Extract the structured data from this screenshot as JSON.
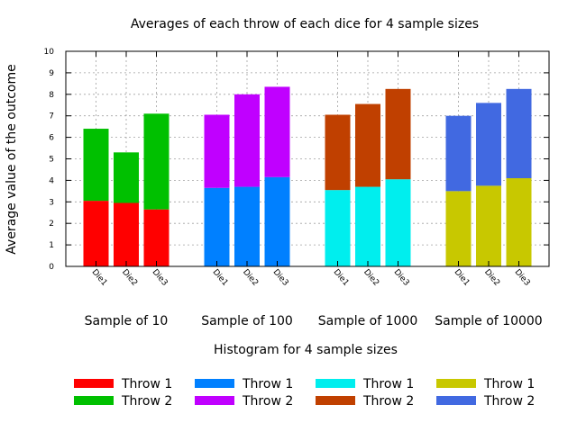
{
  "chart_data": {
    "type": "bar",
    "stacked": true,
    "title": "Averages of each throw of each dice for 4 sample sizes",
    "ylabel": "Average value of the outcome",
    "xlabel": "Histogram for 4 sample sizes",
    "ylim": [
      0,
      10
    ],
    "yticks": [
      "0",
      "1",
      "2",
      "3",
      "4",
      "5",
      "6",
      "7",
      "8",
      "9",
      "10"
    ],
    "grid": true,
    "groups": [
      {
        "label": "Sample of 10",
        "categories": [
          "Die1",
          "Die2",
          "Die3"
        ],
        "series": [
          {
            "name": "Throw 1",
            "color": "#ff0000",
            "values": [
              3.05,
              2.95,
              2.65
            ]
          },
          {
            "name": "Throw 2",
            "color": "#00c000",
            "values": [
              3.35,
              2.35,
              4.45
            ]
          }
        ]
      },
      {
        "label": "Sample of 100",
        "categories": [
          "Die1",
          "Die2",
          "Die3"
        ],
        "series": [
          {
            "name": "Throw 1",
            "color": "#0080ff",
            "values": [
              3.65,
              3.7,
              4.15
            ]
          },
          {
            "name": "Throw 2",
            "color": "#c000ff",
            "values": [
              3.4,
              4.3,
              4.2
            ]
          }
        ]
      },
      {
        "label": "Sample of 1000",
        "categories": [
          "Die1",
          "Die2",
          "Die3"
        ],
        "series": [
          {
            "name": "Throw 1",
            "color": "#00eeee",
            "values": [
              3.55,
              3.7,
              4.05
            ]
          },
          {
            "name": "Throw 2",
            "color": "#c04000",
            "values": [
              3.5,
              3.85,
              4.2
            ]
          }
        ]
      },
      {
        "label": "Sample of 10000",
        "categories": [
          "Die1",
          "Die2",
          "Die3"
        ],
        "series": [
          {
            "name": "Throw 1",
            "color": "#c8c800",
            "values": [
              3.5,
              3.75,
              4.1
            ]
          },
          {
            "name": "Throw 2",
            "color": "#4169e1",
            "values": [
              3.5,
              3.85,
              4.15
            ]
          }
        ]
      }
    ]
  }
}
